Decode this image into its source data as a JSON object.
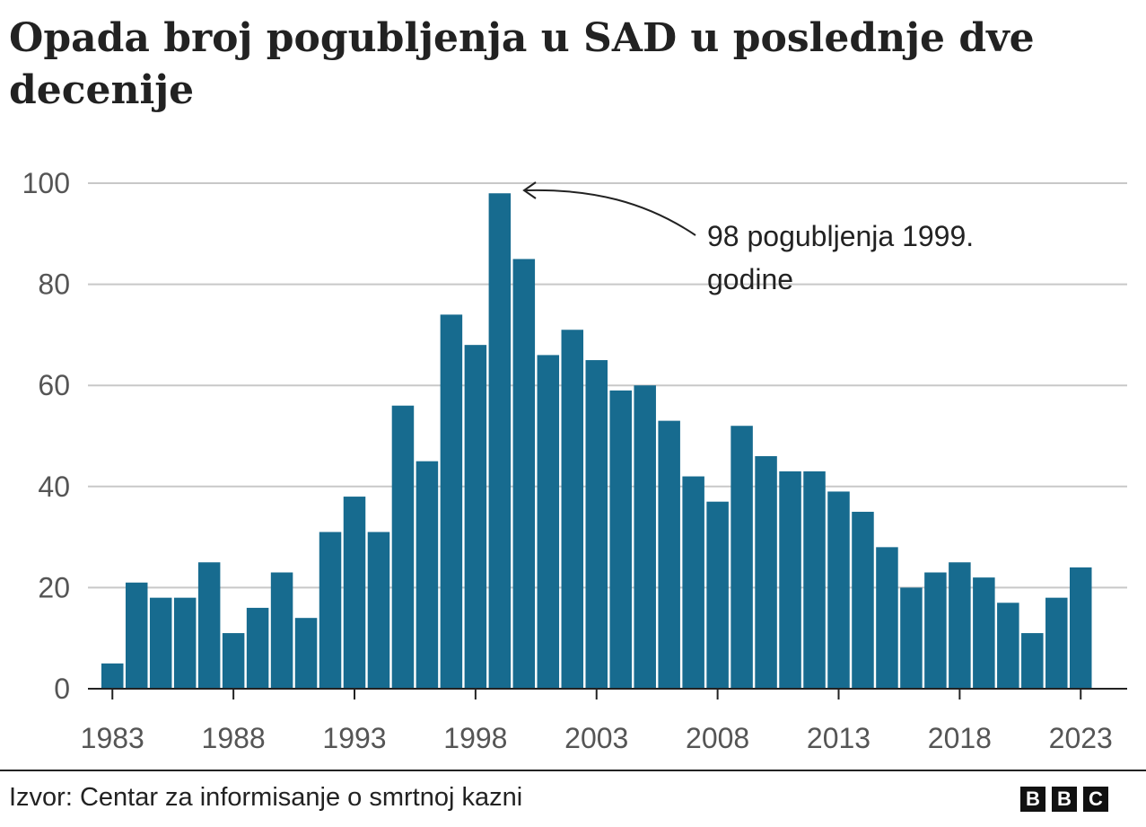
{
  "title": "Opada broj pogubljenja u SAD u poslednje dve decenije",
  "source": "Izvor: Centar za informisanje o smrtnoj kazni",
  "logo": [
    "B",
    "B",
    "C"
  ],
  "chart_data": {
    "type": "bar",
    "title": "Opada broj pogubljenja u SAD u poslednje dve decenije",
    "xlabel": "",
    "ylabel": "",
    "ylim": [
      0,
      100
    ],
    "yticks": [
      0,
      20,
      40,
      60,
      80,
      100
    ],
    "xticks": [
      1983,
      1988,
      1993,
      1998,
      2003,
      2008,
      2013,
      2018,
      2023
    ],
    "grid": true,
    "bar_color": "#176b8f",
    "categories": [
      1983,
      1984,
      1985,
      1986,
      1987,
      1988,
      1989,
      1990,
      1991,
      1992,
      1993,
      1994,
      1995,
      1996,
      1997,
      1998,
      1999,
      2000,
      2001,
      2002,
      2003,
      2004,
      2005,
      2006,
      2007,
      2008,
      2009,
      2010,
      2011,
      2012,
      2013,
      2014,
      2015,
      2016,
      2017,
      2018,
      2019,
      2020,
      2021,
      2022,
      2023
    ],
    "values": [
      5,
      21,
      18,
      18,
      25,
      11,
      16,
      23,
      14,
      31,
      38,
      31,
      56,
      45,
      74,
      68,
      98,
      85,
      66,
      71,
      65,
      59,
      60,
      53,
      42,
      37,
      52,
      46,
      43,
      43,
      39,
      35,
      28,
      20,
      23,
      25,
      22,
      17,
      11,
      18,
      24
    ],
    "annotation": {
      "target_year": 1999,
      "lines": [
        "98 pogubljenja 1999.",
        "godine"
      ]
    }
  }
}
